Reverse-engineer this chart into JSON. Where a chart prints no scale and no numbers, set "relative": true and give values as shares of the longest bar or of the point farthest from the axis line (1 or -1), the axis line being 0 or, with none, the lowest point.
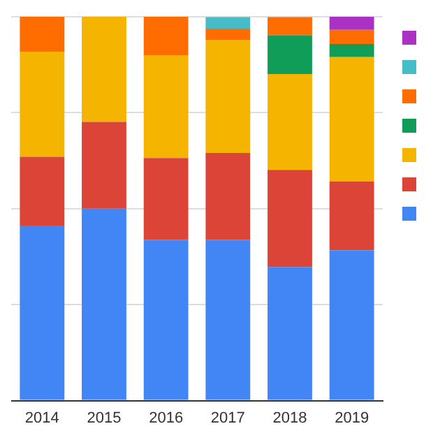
{
  "chart_data": {
    "type": "bar",
    "stacked": true,
    "relative": true,
    "grid": "y",
    "categories": [
      "2014",
      "2015",
      "2016",
      "2017",
      "2018",
      "2019"
    ],
    "series": [
      {
        "color": "#4285f4",
        "values": [
          0.456,
          0.5,
          0.419,
          0.419,
          0.348,
          0.392
        ]
      },
      {
        "color": "#db4437",
        "values": [
          0.179,
          0.226,
          0.213,
          0.226,
          0.253,
          0.179
        ]
      },
      {
        "color": "#f4b400",
        "values": [
          0.274,
          0.274,
          0.267,
          0.294,
          0.25,
          0.324
        ]
      },
      {
        "color": "#0f9d58",
        "values": [
          null,
          null,
          null,
          null,
          0.101,
          0.034
        ]
      },
      {
        "color": "#ff6d01",
        "values": [
          0.091,
          null,
          0.101,
          0.03,
          0.047,
          0.037
        ]
      },
      {
        "color": "#46bdc6",
        "values": [
          null,
          null,
          null,
          0.03,
          null,
          null
        ]
      },
      {
        "color": "#ab30c4",
        "values": [
          null,
          null,
          null,
          null,
          null,
          0.034
        ]
      }
    ]
  }
}
